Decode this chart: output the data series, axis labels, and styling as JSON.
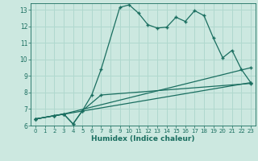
{
  "title": "",
  "xlabel": "Humidex (Indice chaleur)",
  "ylabel": "",
  "background_color": "#cce8e0",
  "grid_color": "#b0d8ce",
  "line_color": "#1a6e60",
  "xlim": [
    -0.5,
    23.5
  ],
  "ylim": [
    6,
    13.4
  ],
  "xticks": [
    0,
    1,
    2,
    3,
    4,
    5,
    6,
    7,
    8,
    9,
    10,
    11,
    12,
    13,
    14,
    15,
    16,
    17,
    18,
    19,
    20,
    21,
    22,
    23
  ],
  "yticks": [
    6,
    7,
    8,
    9,
    10,
    11,
    12,
    13
  ],
  "line1_x": [
    0,
    2,
    3,
    4,
    5,
    6,
    7,
    9,
    10,
    11,
    12,
    13,
    14,
    15,
    16,
    17,
    18,
    19,
    20,
    21,
    22,
    23
  ],
  "line1_y": [
    6.4,
    6.6,
    6.7,
    6.1,
    6.9,
    7.85,
    9.4,
    13.15,
    13.3,
    12.8,
    12.1,
    11.9,
    11.95,
    12.55,
    12.3,
    12.95,
    12.65,
    11.3,
    10.1,
    10.55,
    9.4,
    8.6
  ],
  "line2_x": [
    0,
    2,
    3,
    4,
    5,
    7,
    23
  ],
  "line2_y": [
    6.4,
    6.6,
    6.7,
    6.1,
    6.9,
    7.85,
    8.55
  ],
  "line3_x": [
    0,
    2,
    3,
    23
  ],
  "line3_y": [
    6.4,
    6.6,
    6.7,
    9.5
  ],
  "line4_x": [
    0,
    23
  ],
  "line4_y": [
    6.4,
    8.6
  ]
}
